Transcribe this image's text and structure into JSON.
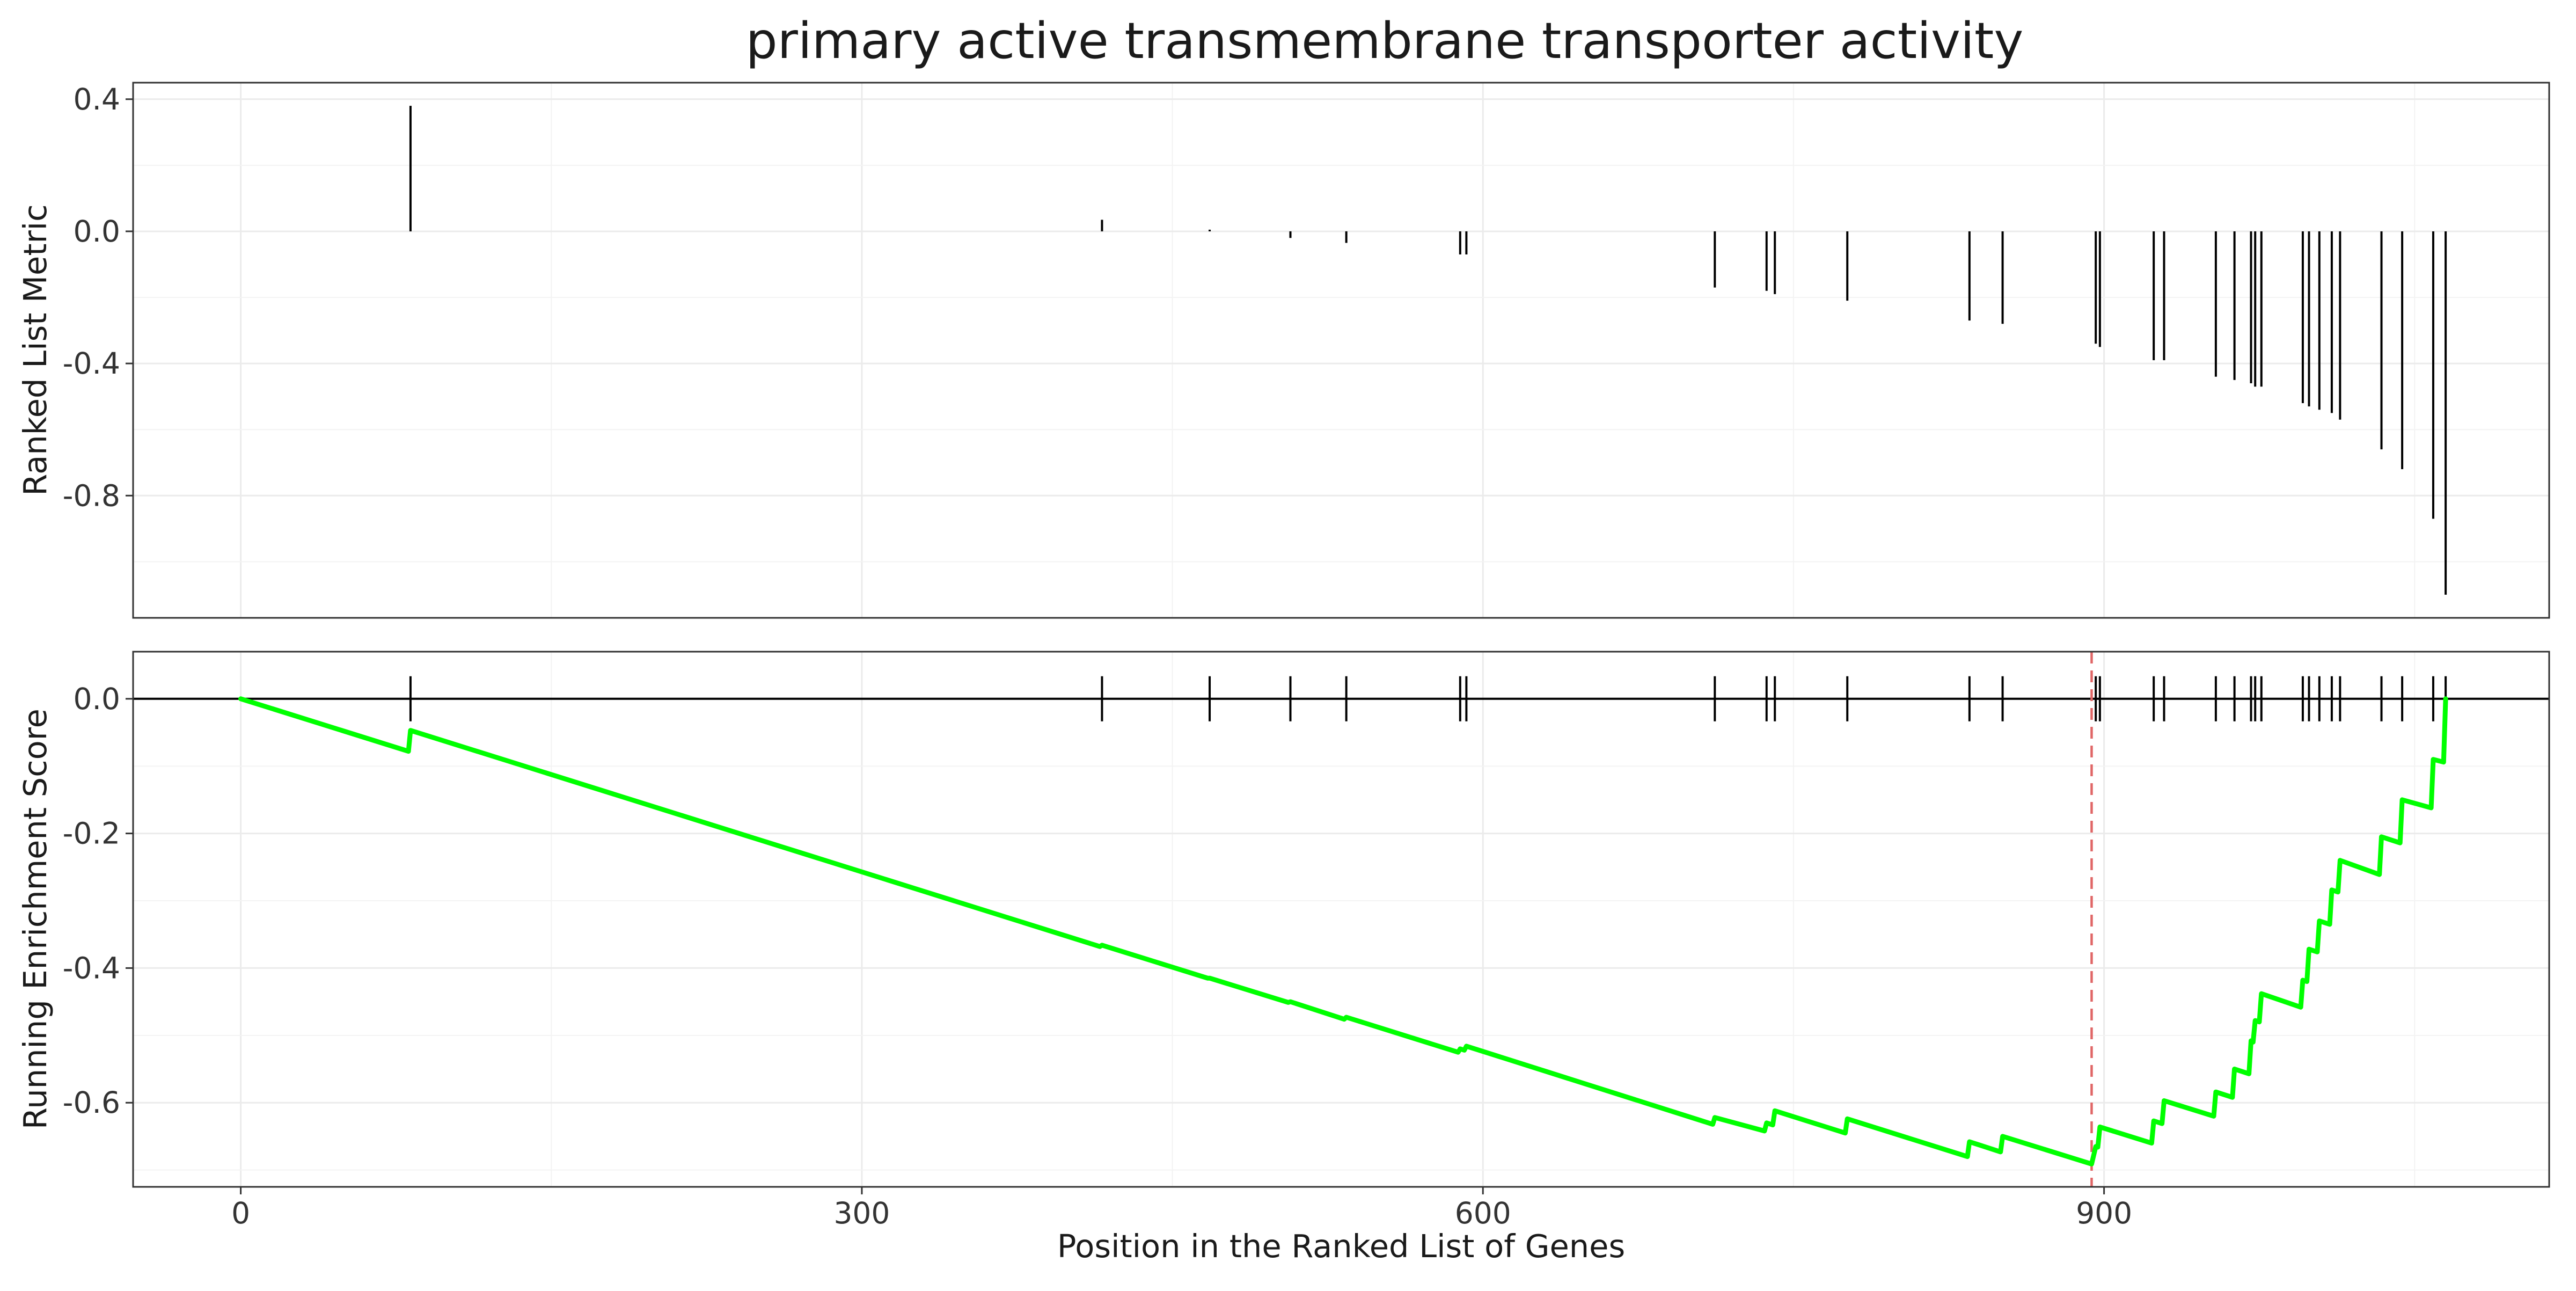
{
  "chart_data": {
    "type": "line",
    "title": "primary active transmembrane transporter activity",
    "xlabel": "Position in the Ranked List of Genes",
    "xlim": [
      -52,
      1115
    ],
    "x_ticks": [
      0,
      300,
      600,
      900
    ],
    "x_tick_labels": [
      "0",
      "300",
      "600",
      "900"
    ],
    "grid": true,
    "panels": [
      {
        "name": "metric",
        "ylabel": "Ranked List Metric",
        "ylim": [
          -1.17,
          0.45
        ],
        "y_ticks": [
          0.4,
          0.0,
          -0.4,
          -0.8
        ],
        "y_tick_labels": [
          "0.4",
          "0.0",
          "-0.4",
          "-0.8"
        ],
        "bars": [
          {
            "x": 82,
            "y": 0.38
          },
          {
            "x": 416,
            "y": 0.035
          },
          {
            "x": 468,
            "y": 0.005
          },
          {
            "x": 507,
            "y": -0.02
          },
          {
            "x": 534,
            "y": -0.035
          },
          {
            "x": 589,
            "y": -0.07
          },
          {
            "x": 592,
            "y": -0.07
          },
          {
            "x": 712,
            "y": -0.17
          },
          {
            "x": 737,
            "y": -0.18
          },
          {
            "x": 741,
            "y": -0.19
          },
          {
            "x": 776,
            "y": -0.21
          },
          {
            "x": 835,
            "y": -0.27
          },
          {
            "x": 851,
            "y": -0.28
          },
          {
            "x": 896,
            "y": -0.34
          },
          {
            "x": 898,
            "y": -0.35
          },
          {
            "x": 924,
            "y": -0.39
          },
          {
            "x": 929,
            "y": -0.39
          },
          {
            "x": 954,
            "y": -0.44
          },
          {
            "x": 963,
            "y": -0.45
          },
          {
            "x": 971,
            "y": -0.46
          },
          {
            "x": 973,
            "y": -0.47
          },
          {
            "x": 976,
            "y": -0.47
          },
          {
            "x": 996,
            "y": -0.52
          },
          {
            "x": 999,
            "y": -0.53
          },
          {
            "x": 1004,
            "y": -0.54
          },
          {
            "x": 1010,
            "y": -0.55
          },
          {
            "x": 1014,
            "y": -0.57
          },
          {
            "x": 1034,
            "y": -0.66
          },
          {
            "x": 1044,
            "y": -0.72
          },
          {
            "x": 1059,
            "y": -0.87
          },
          {
            "x": 1065,
            "y": -1.1
          }
        ]
      },
      {
        "name": "running-es",
        "ylabel": "Running Enrichment Score",
        "ylim": [
          -0.725,
          0.07
        ],
        "y_ticks": [
          0.0,
          -0.2,
          -0.4,
          -0.6
        ],
        "y_tick_labels": [
          "0.0",
          "-0.2",
          "-0.4",
          "-0.6"
        ],
        "zero_line": 0.0,
        "peak_position": 894,
        "line_color": "#00ff00",
        "vline_color": "#e06666",
        "hit_positions": [
          82,
          416,
          468,
          507,
          534,
          589,
          592,
          712,
          737,
          741,
          776,
          835,
          851,
          896,
          898,
          924,
          929,
          954,
          963,
          971,
          973,
          976,
          996,
          999,
          1004,
          1010,
          1014,
          1034,
          1044,
          1059,
          1065
        ],
        "series": [
          {
            "x": [
              0,
              81,
              82,
              415,
              416,
              467,
              468,
              506,
              507,
              533,
              534,
              588,
              589,
              591,
              592,
              711,
              712,
              736,
              737,
              740,
              741,
              775,
              776,
              834,
              835,
              850,
              851,
              894,
              896,
              897,
              898,
              923,
              924,
              928,
              929,
              953,
              954,
              962,
              963,
              970,
              971,
              972,
              973,
              975,
              976,
              995,
              996,
              998,
              999,
              1003,
              1004,
              1009,
              1010,
              1013,
              1014,
              1033,
              1034,
              1043,
              1044,
              1058,
              1059,
              1064,
              1065
            ],
            "y": [
              0.0,
              -0.078,
              -0.047,
              -0.368,
              -0.366,
              -0.415,
              -0.415,
              -0.451,
              -0.45,
              -0.476,
              -0.473,
              -0.525,
              -0.52,
              -0.522,
              -0.516,
              -0.632,
              -0.622,
              -0.642,
              -0.63,
              -0.633,
              -0.612,
              -0.645,
              -0.624,
              -0.68,
              -0.658,
              -0.673,
              -0.65,
              -0.691,
              -0.665,
              -0.666,
              -0.636,
              -0.66,
              -0.627,
              -0.631,
              -0.597,
              -0.62,
              -0.584,
              -0.592,
              -0.55,
              -0.557,
              -0.508,
              -0.51,
              -0.478,
              -0.48,
              -0.438,
              -0.458,
              -0.418,
              -0.42,
              -0.372,
              -0.376,
              -0.33,
              -0.335,
              -0.284,
              -0.287,
              -0.24,
              -0.261,
              -0.205,
              -0.214,
              -0.15,
              -0.162,
              -0.09,
              -0.094,
              0.0
            ]
          }
        ]
      }
    ]
  }
}
